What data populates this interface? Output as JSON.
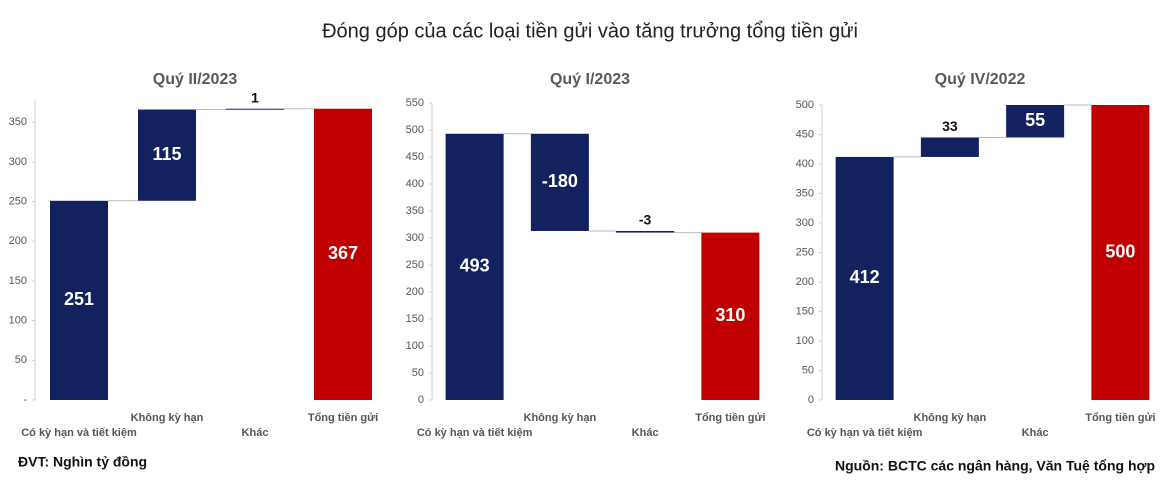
{
  "title": "Đóng góp của các loại tiền gửi vào tăng trưởng tổng tiền gửi",
  "unit_note": "ĐVT: Nghìn tỷ đồng",
  "source": "Nguồn: BCTC các ngân hàng, Văn Tuệ tổng hợp",
  "chart_data": [
    {
      "type": "waterfall",
      "title": "Quý II/2023",
      "categories": [
        "Có kỳ hạn và tiết kiệm",
        "Không kỳ hạn",
        "Khác",
        "Tổng tiền gửi"
      ],
      "values": [
        251,
        115,
        1,
        367
      ],
      "color": "#14215f",
      "total_color": "#c00000",
      "ylim": [
        0,
        378
      ],
      "yticks": [
        {
          "value": 0,
          "label": "-"
        },
        50,
        100,
        150,
        200,
        250,
        300,
        350
      ]
    },
    {
      "type": "waterfall",
      "title": "Quý I/2023",
      "categories": [
        "Có kỳ hạn và tiết kiệm",
        "Không kỳ hạn",
        "Khác",
        "Tổng tiền gửi"
      ],
      "values": [
        493,
        -180,
        -3,
        310
      ],
      "color": "#14215f",
      "total_color": "#c00000",
      "ylim": [
        0,
        550
      ],
      "yticks": [
        0,
        50,
        100,
        150,
        200,
        250,
        300,
        350,
        400,
        450,
        500,
        550
      ]
    },
    {
      "type": "waterfall",
      "title": "Quý IV/2022",
      "categories": [
        "Có kỳ hạn và tiết kiệm",
        "Không kỳ hạn",
        "Khác",
        "Tổng tiền gửi"
      ],
      "values": [
        412,
        33,
        55,
        500
      ],
      "color": "#14215f",
      "total_color": "#c00000",
      "ylim": [
        0,
        500
      ],
      "yticks": [
        0,
        50,
        100,
        150,
        200,
        250,
        300,
        350,
        400,
        450,
        500
      ]
    }
  ]
}
